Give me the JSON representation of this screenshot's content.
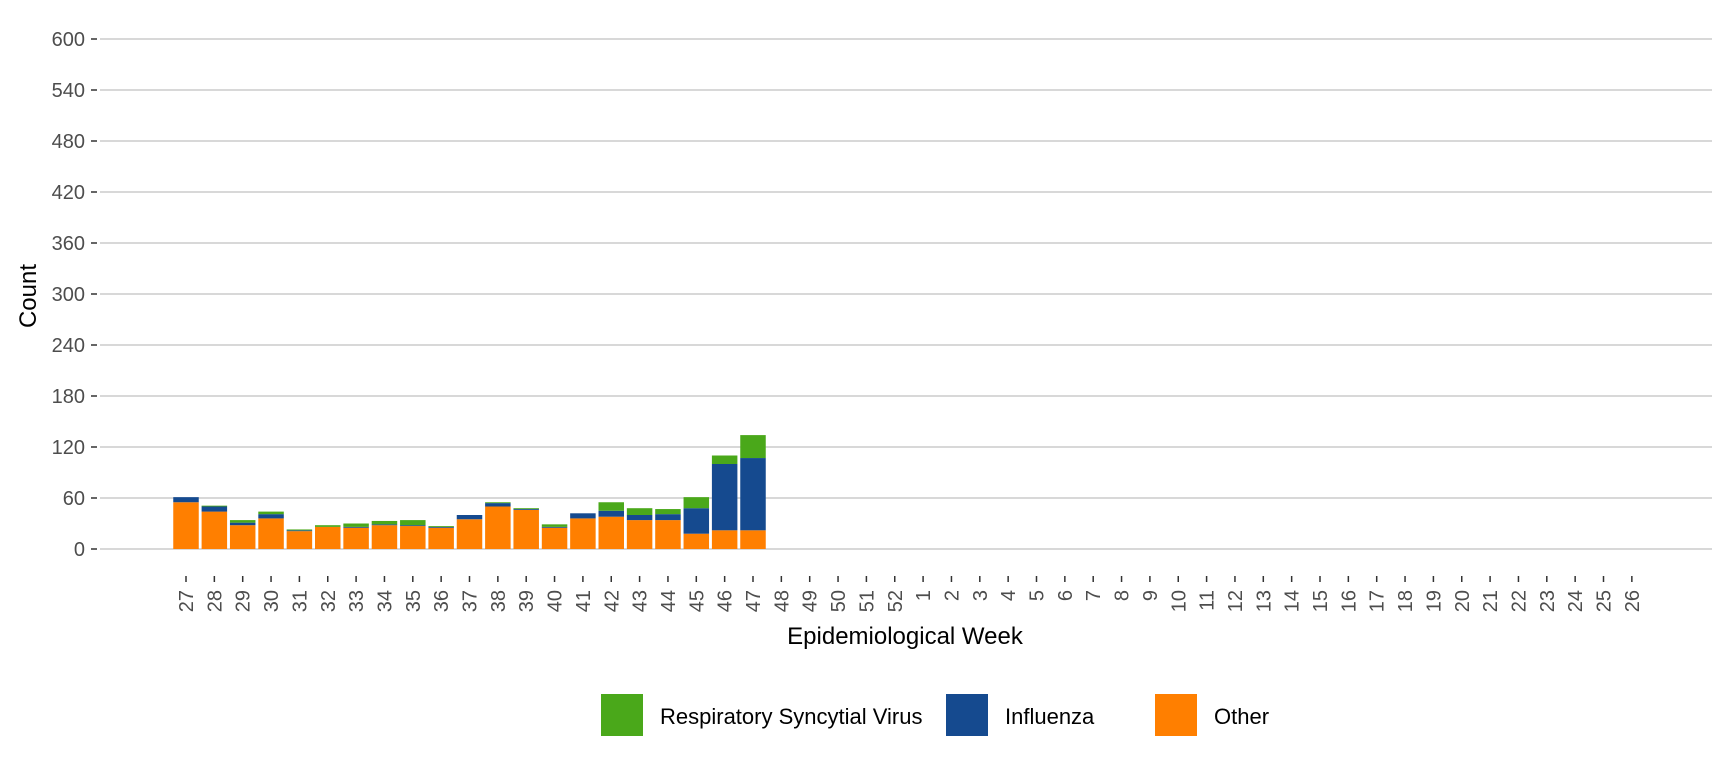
{
  "chart_data": {
    "type": "bar",
    "stacked": true,
    "xlabel": "Epidemiological Week",
    "ylabel": "Count",
    "ylim": [
      0,
      600
    ],
    "yticks": [
      0,
      60,
      120,
      180,
      240,
      300,
      360,
      420,
      480,
      540,
      600
    ],
    "grid": true,
    "legend_position": "bottom",
    "categories": [
      "27",
      "28",
      "29",
      "30",
      "31",
      "32",
      "33",
      "34",
      "35",
      "36",
      "37",
      "38",
      "39",
      "40",
      "41",
      "42",
      "43",
      "44",
      "45",
      "46",
      "47",
      "48",
      "49",
      "50",
      "51",
      "52",
      "1",
      "2",
      "3",
      "4",
      "5",
      "6",
      "7",
      "8",
      "9",
      "10",
      "11",
      "12",
      "13",
      "14",
      "15",
      "16",
      "17",
      "18",
      "19",
      "20",
      "21",
      "22",
      "23",
      "24",
      "25",
      "26"
    ],
    "series": [
      {
        "name": "Other",
        "color": "#ff7f00",
        "values": [
          55,
          44,
          28,
          36,
          21,
          26,
          25,
          28,
          27,
          25,
          35,
          50,
          46,
          25,
          36,
          38,
          34,
          34,
          18,
          22,
          22,
          null,
          null,
          null,
          null,
          null,
          null,
          null,
          null,
          null,
          null,
          null,
          null,
          null,
          null,
          null,
          null,
          null,
          null,
          null,
          null,
          null,
          null,
          null,
          null,
          null,
          null,
          null,
          null,
          null,
          null,
          null
        ]
      },
      {
        "name": "Influenza",
        "color": "#154a8f",
        "values": [
          6,
          6,
          3,
          5,
          1,
          0,
          1,
          1,
          1,
          1,
          5,
          4,
          1,
          1,
          6,
          7,
          6,
          7,
          30,
          78,
          85,
          null,
          null,
          null,
          null,
          null,
          null,
          null,
          null,
          null,
          null,
          null,
          null,
          null,
          null,
          null,
          null,
          null,
          null,
          null,
          null,
          null,
          null,
          null,
          null,
          null,
          null,
          null,
          null,
          null,
          null,
          null
        ]
      },
      {
        "name": "Respiratory Syncytial Virus",
        "color": "#4aa81a",
        "values": [
          0,
          1,
          3,
          3,
          1,
          2,
          4,
          4,
          6,
          1,
          0,
          1,
          1,
          3,
          0,
          10,
          8,
          6,
          13,
          10,
          27,
          null,
          null,
          null,
          null,
          null,
          null,
          null,
          null,
          null,
          null,
          null,
          null,
          null,
          null,
          null,
          null,
          null,
          null,
          null,
          null,
          null,
          null,
          null,
          null,
          null,
          null,
          null,
          null,
          null,
          null,
          null
        ]
      }
    ],
    "legend": [
      {
        "name": "Respiratory Syncytial Virus",
        "color": "#4aa81a"
      },
      {
        "name": "Influenza",
        "color": "#154a8f"
      },
      {
        "name": "Other",
        "color": "#ff7f00"
      }
    ]
  }
}
